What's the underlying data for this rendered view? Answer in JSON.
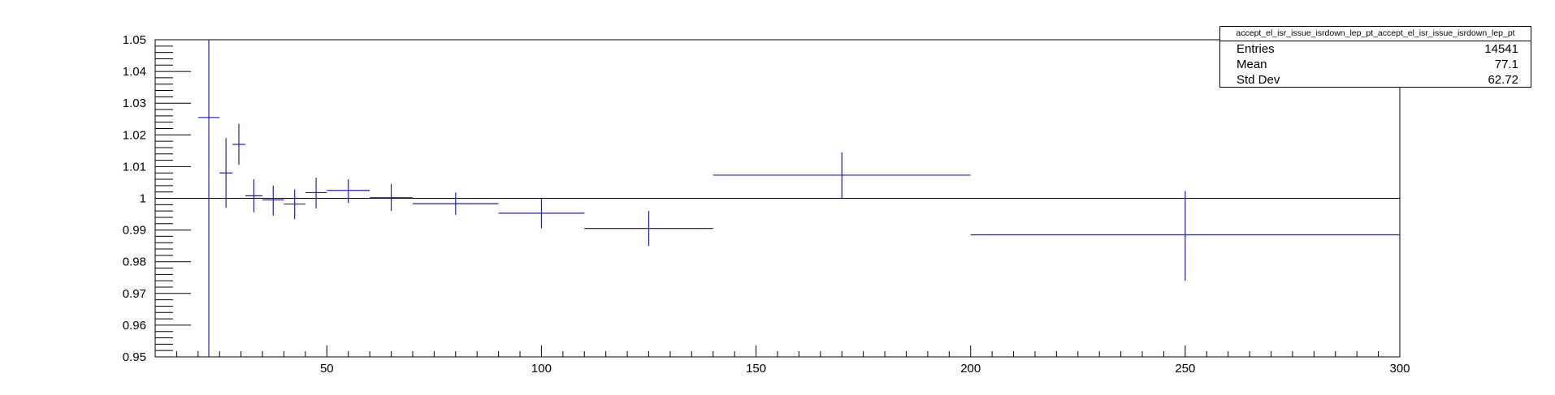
{
  "chart_data": {
    "type": "scatter",
    "title": "",
    "xlabel": "",
    "ylabel": "",
    "xlim": [
      10,
      300
    ],
    "ylim": [
      0.95,
      1.05
    ],
    "x_ticks": [
      50,
      100,
      150,
      200,
      250,
      300
    ],
    "y_ticks": [
      0.95,
      0.96,
      0.97,
      0.98,
      0.99,
      1,
      1.01,
      1.02,
      1.03,
      1.04,
      1.05
    ],
    "x_tick_labels": [
      "50",
      "100",
      "150",
      "200",
      "250",
      "300"
    ],
    "y_tick_labels": [
      "0.95",
      "0.96",
      "0.97",
      "0.98",
      "0.99",
      "1",
      "1.01",
      "1.02",
      "1.03",
      "1.04",
      "1.05"
    ],
    "reference_line_y": 1.0,
    "marker_color": "#1f1fb4",
    "series": [
      {
        "points": [
          {
            "xlo": 20,
            "xhi": 25,
            "y": 1.0255,
            "ylo": 0.95,
            "yhi": 1.05
          },
          {
            "xlo": 25,
            "xhi": 28,
            "y": 1.008,
            "ylo": 0.997,
            "yhi": 1.019
          },
          {
            "xlo": 28,
            "xhi": 31,
            "y": 1.017,
            "ylo": 1.0105,
            "yhi": 1.0235
          },
          {
            "xlo": 31,
            "xhi": 35,
            "y": 1.0008,
            "ylo": 0.9956,
            "yhi": 1.006
          },
          {
            "xlo": 35,
            "xhi": 40,
            "y": 0.9995,
            "ylo": 0.9945,
            "yhi": 1.004
          },
          {
            "xlo": 40,
            "xhi": 45,
            "y": 0.9982,
            "ylo": 0.9935,
            "yhi": 1.0028
          },
          {
            "xlo": 45,
            "xhi": 50,
            "y": 1.0018,
            "ylo": 0.9968,
            "yhi": 1.0065
          },
          {
            "xlo": 50,
            "xhi": 60,
            "y": 1.0025,
            "ylo": 0.9985,
            "yhi": 1.006
          },
          {
            "xlo": 60,
            "xhi": 70,
            "y": 1.0002,
            "ylo": 0.996,
            "yhi": 1.0045
          },
          {
            "xlo": 70,
            "xhi": 90,
            "y": 0.9983,
            "ylo": 0.9948,
            "yhi": 1.0018
          },
          {
            "xlo": 90,
            "xhi": 110,
            "y": 0.9953,
            "ylo": 0.9905,
            "yhi": 1.0
          },
          {
            "xlo": 110,
            "xhi": 140,
            "y": 0.9905,
            "ylo": 0.985,
            "yhi": 0.996
          },
          {
            "xlo": 140,
            "xhi": 200,
            "y": 1.0073,
            "ylo": 1.0,
            "yhi": 1.0145
          },
          {
            "xlo": 200,
            "xhi": 300,
            "y": 0.9885,
            "ylo": 0.974,
            "yhi": 1.0023
          }
        ]
      }
    ]
  },
  "stats_box": {
    "title": "accept_el_isr_issue_isrdown_lep_pt_accept_el_isr_issue_isrdown_lep_pt",
    "rows": [
      {
        "label": "Entries",
        "value": "14541"
      },
      {
        "label": "Mean",
        "value": "77.1"
      },
      {
        "label": "Std Dev",
        "value": "62.72"
      }
    ]
  }
}
